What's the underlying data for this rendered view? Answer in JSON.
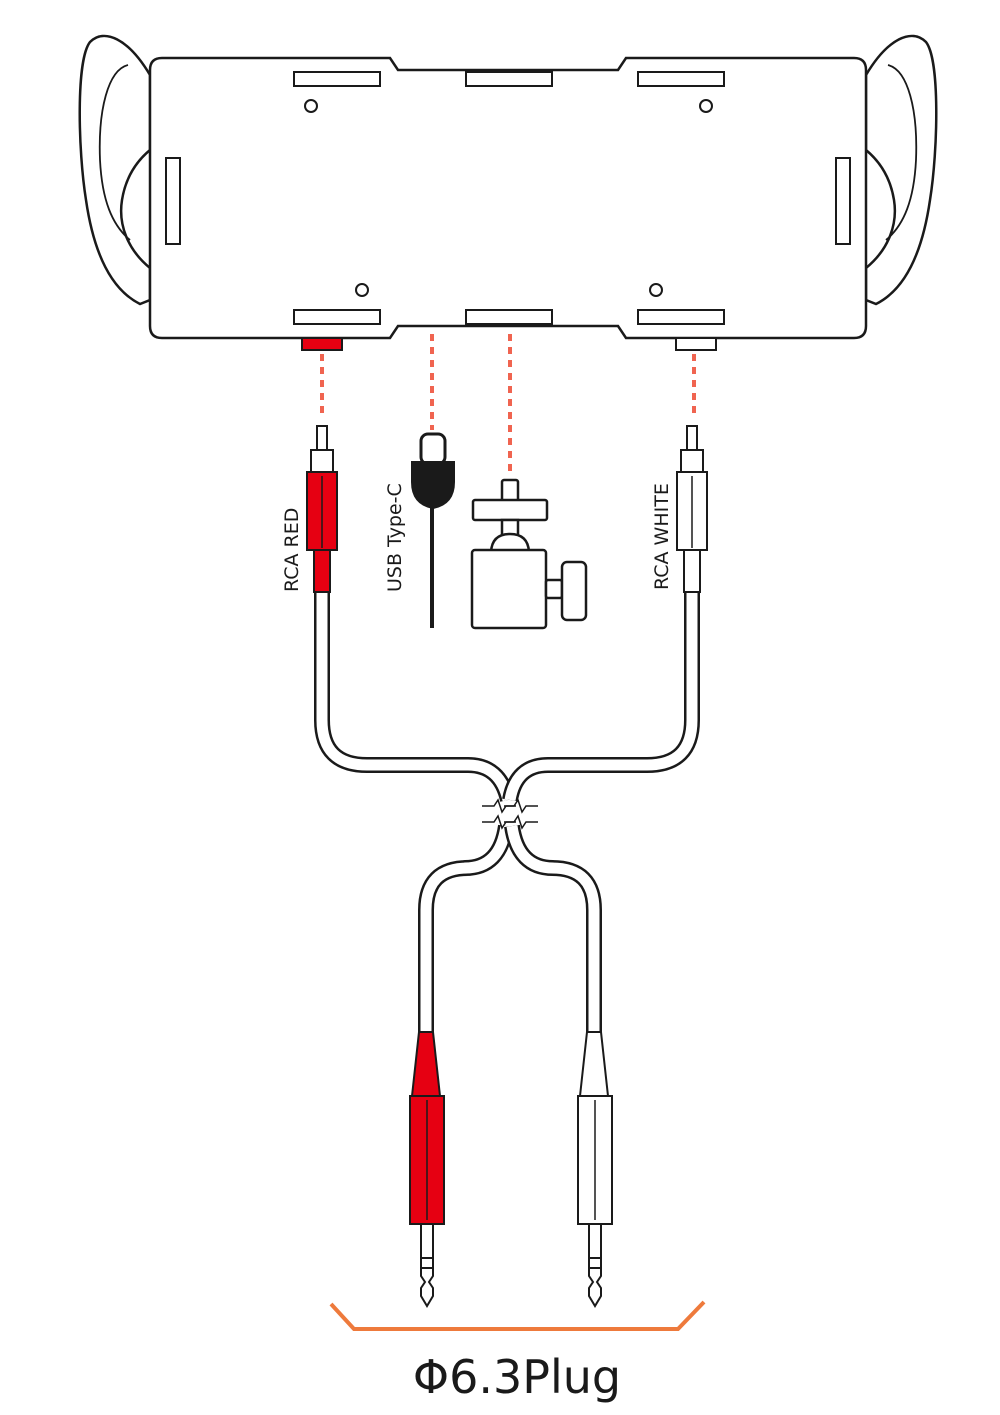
{
  "labels": {
    "rca_red": "RCA RED",
    "usb_type_c": "USB Type-C",
    "rca_white": "RCA WHITE",
    "plug_caption": "Φ6.3Plug"
  },
  "colors": {
    "line": "#1a1a1a",
    "red": "#e60012",
    "dashed_guide": "#f06450",
    "bracket": "#ee7a3c",
    "fill": "#ffffff"
  }
}
